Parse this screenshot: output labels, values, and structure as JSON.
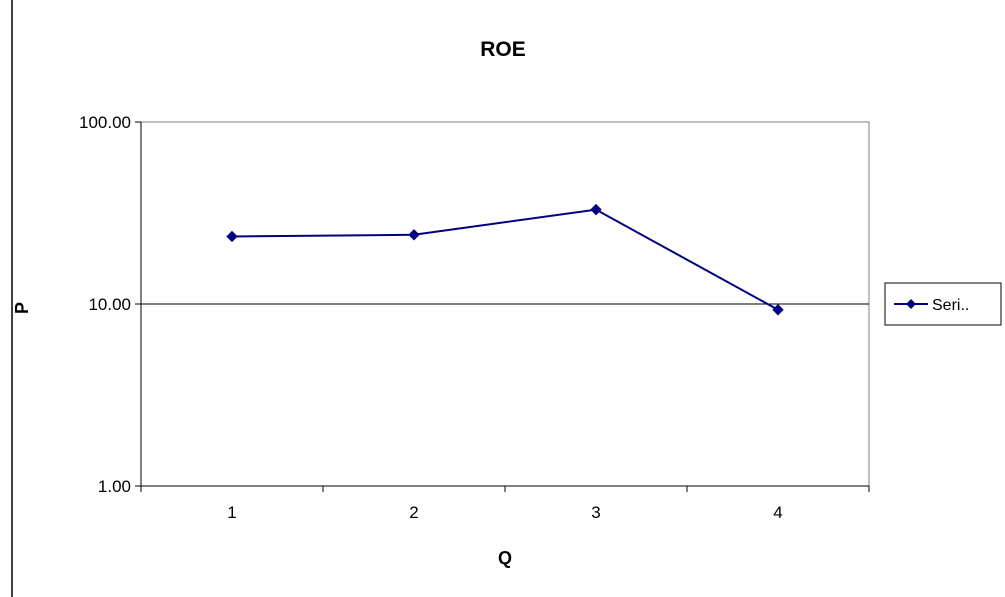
{
  "chart_data": {
    "type": "line",
    "title": "ROE",
    "xlabel": "Q",
    "ylabel": "P",
    "y_scale": "log",
    "ylim": [
      1,
      100
    ],
    "y_ticks": [
      "1.00",
      "10.00",
      "100.00"
    ],
    "y_tick_values": [
      1,
      10,
      100
    ],
    "categories": [
      "1",
      "2",
      "3",
      "4"
    ],
    "series": [
      {
        "name": "Seri..",
        "values": [
          23.5,
          24.0,
          33.0,
          9.3
        ]
      }
    ],
    "grid": "major horizontal at 10",
    "legend_position": "right",
    "colors": {
      "series": "#000080",
      "axis": "#000000",
      "grid": "#000000",
      "frame": "#808080"
    }
  }
}
